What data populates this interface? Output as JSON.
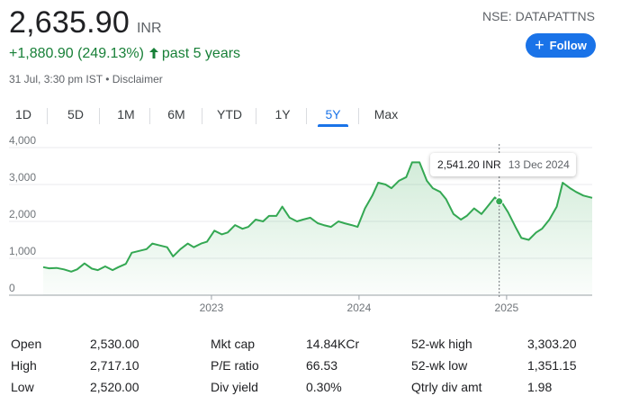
{
  "quote": {
    "price": "2,635.90",
    "currency": "INR",
    "change": "+1,880.90 (249.13%)",
    "period": "past 5 years",
    "timestamp": "31 Jul, 3:30 pm IST",
    "separator": "•",
    "disclaimer": "Disclaimer",
    "ticker": "NSE: DATAPATTNS",
    "follow_label": "Follow",
    "up_color": "#188038",
    "accent": "#1a73e8"
  },
  "tabs": [
    "1D",
    "5D",
    "1M",
    "6M",
    "YTD",
    "1Y",
    "5Y",
    "Max"
  ],
  "active_tab": "5Y",
  "tooltip": {
    "value": "2,541.20 INR",
    "date": "13 Dec 2024"
  },
  "chart_data": {
    "type": "area",
    "line_color": "#34a853",
    "ylim": [
      0,
      4000
    ],
    "y_ticks": [
      "4,000",
      "3,000",
      "2,000",
      "1,000",
      "0"
    ],
    "y_tick_values": [
      4000,
      3000,
      2000,
      1000,
      0
    ],
    "x_ticks": [
      "2023",
      "2024",
      "2025"
    ],
    "x_tick_years": [
      2023.0,
      2024.0,
      2025.0
    ],
    "xlim_years": [
      2021.86,
      2025.58
    ],
    "highlight": {
      "year": 2024.95,
      "value": 2541.2
    },
    "x_years": [
      2021.86,
      2021.9,
      2021.95,
      2022.0,
      2022.05,
      2022.09,
      2022.14,
      2022.19,
      2022.23,
      2022.28,
      2022.33,
      2022.37,
      2022.42,
      2022.46,
      2022.51,
      2022.56,
      2022.6,
      2022.65,
      2022.7,
      2022.74,
      2022.79,
      2022.84,
      2022.88,
      2022.93,
      2022.97,
      2023.02,
      2023.07,
      2023.11,
      2023.16,
      2023.21,
      2023.25,
      2023.3,
      2023.35,
      2023.39,
      2023.44,
      2023.48,
      2023.53,
      2023.58,
      2023.62,
      2023.67,
      2023.72,
      2023.76,
      2023.81,
      2023.86,
      2023.9,
      2023.95,
      2023.99,
      2024.04,
      2024.09,
      2024.13,
      2024.18,
      2024.22,
      2024.27,
      2024.32,
      2024.36,
      2024.41,
      2024.46,
      2024.5,
      2024.55,
      2024.59,
      2024.64,
      2024.69,
      2024.73,
      2024.78,
      2024.83,
      2024.87,
      2024.92,
      2024.95,
      2024.97,
      2025.01,
      2025.06,
      2025.1,
      2025.15,
      2025.2,
      2025.24,
      2025.29,
      2025.34,
      2025.38,
      2025.43,
      2025.47,
      2025.52,
      2025.58
    ],
    "values": [
      760,
      730,
      740,
      700,
      640,
      700,
      860,
      720,
      680,
      780,
      680,
      760,
      850,
      1150,
      1200,
      1250,
      1400,
      1350,
      1300,
      1050,
      1250,
      1400,
      1300,
      1400,
      1450,
      1750,
      1650,
      1700,
      1900,
      1800,
      1850,
      2050,
      2000,
      2150,
      2150,
      2400,
      2100,
      2000,
      2050,
      2100,
      1950,
      1900,
      1850,
      2000,
      1950,
      1900,
      1850,
      2350,
      2700,
      3050,
      3000,
      2900,
      3100,
      3200,
      3600,
      3600,
      3100,
      2900,
      2800,
      2600,
      2200,
      2050,
      2150,
      2350,
      2200,
      2400,
      2650,
      2541,
      2500,
      2250,
      1850,
      1550,
      1500,
      1700,
      1800,
      2050,
      2400,
      3050,
      2900,
      2800,
      2700,
      2640
    ]
  },
  "stats": [
    {
      "label": "Open",
      "value": "2,530.00"
    },
    {
      "label": "High",
      "value": "2,717.10"
    },
    {
      "label": "Low",
      "value": "2,520.00"
    },
    {
      "label": "Mkt cap",
      "value": "14.84KCr"
    },
    {
      "label": "P/E ratio",
      "value": "66.53"
    },
    {
      "label": "Div yield",
      "value": "0.30%"
    },
    {
      "label": "52-wk high",
      "value": "3,303.20"
    },
    {
      "label": "52-wk low",
      "value": "1,351.15"
    },
    {
      "label": "Qtrly div amt",
      "value": "1.98"
    }
  ]
}
